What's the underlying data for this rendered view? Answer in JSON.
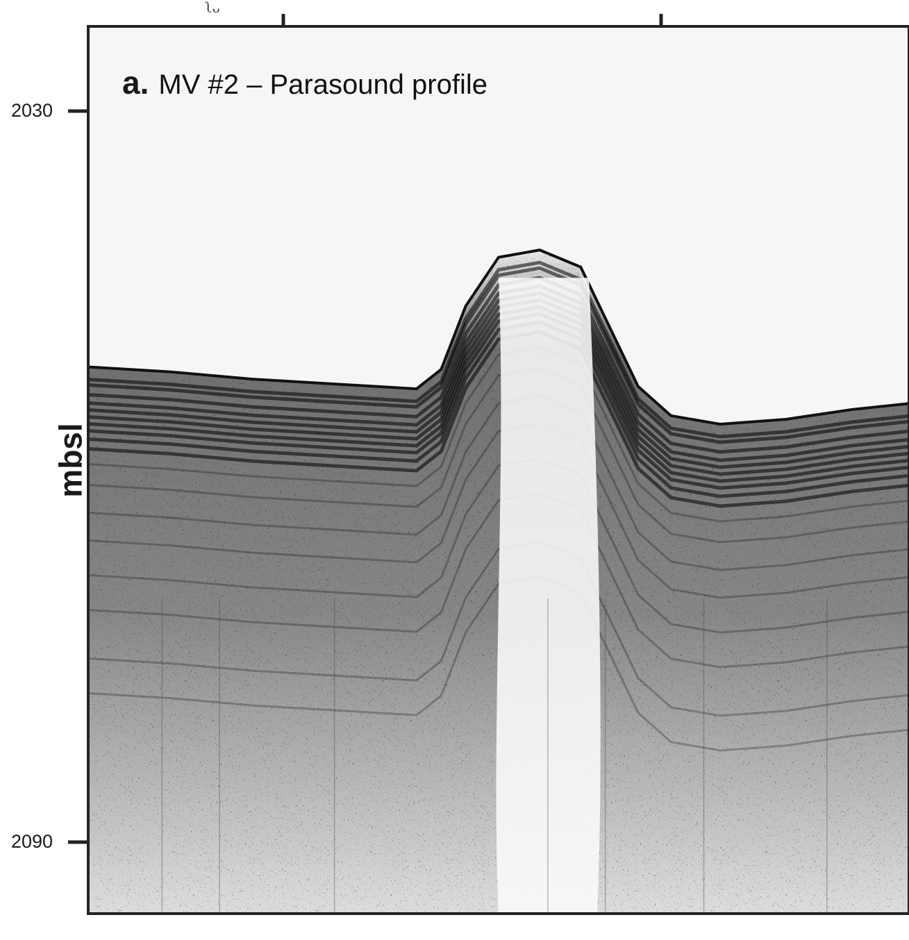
{
  "figure": {
    "panel_letter": "a.",
    "panel_title": "MV #2 – Parasound profile",
    "ylabel": "mbsl",
    "top_fragment": "ʅᴗ",
    "colors": {
      "background": "#ffffff",
      "water_column": "#f6f6f6",
      "reflector": "#111111",
      "frame": "#222222"
    }
  },
  "chart_data": {
    "type": "seismic-profile",
    "title": "MV #2 – Parasound profile",
    "ylabel": "mbsl",
    "xlabel": "",
    "y_axis_inverted": true,
    "y_ticks": [
      2030,
      2090
    ],
    "y_tick_labels": [
      "2030",
      "2090"
    ],
    "seafloor_depth_mbsl": [
      {
        "trace": 0.0,
        "depth": 2051.0
      },
      {
        "trace": 0.1,
        "depth": 2051.4
      },
      {
        "trace": 0.2,
        "depth": 2052.0
      },
      {
        "trace": 0.3,
        "depth": 2052.4
      },
      {
        "trace": 0.4,
        "depth": 2052.8
      },
      {
        "trace": 0.43,
        "depth": 2051.2
      },
      {
        "trace": 0.46,
        "depth": 2046.0
      },
      {
        "trace": 0.5,
        "depth": 2042.0
      },
      {
        "trace": 0.55,
        "depth": 2041.4
      },
      {
        "trace": 0.6,
        "depth": 2042.8
      },
      {
        "trace": 0.63,
        "depth": 2047.0
      },
      {
        "trace": 0.67,
        "depth": 2052.6
      },
      {
        "trace": 0.71,
        "depth": 2055.0
      },
      {
        "trace": 0.77,
        "depth": 2055.7
      },
      {
        "trace": 0.85,
        "depth": 2055.3
      },
      {
        "trace": 0.93,
        "depth": 2054.5
      },
      {
        "trace": 1.0,
        "depth": 2054.0
      }
    ]
  }
}
